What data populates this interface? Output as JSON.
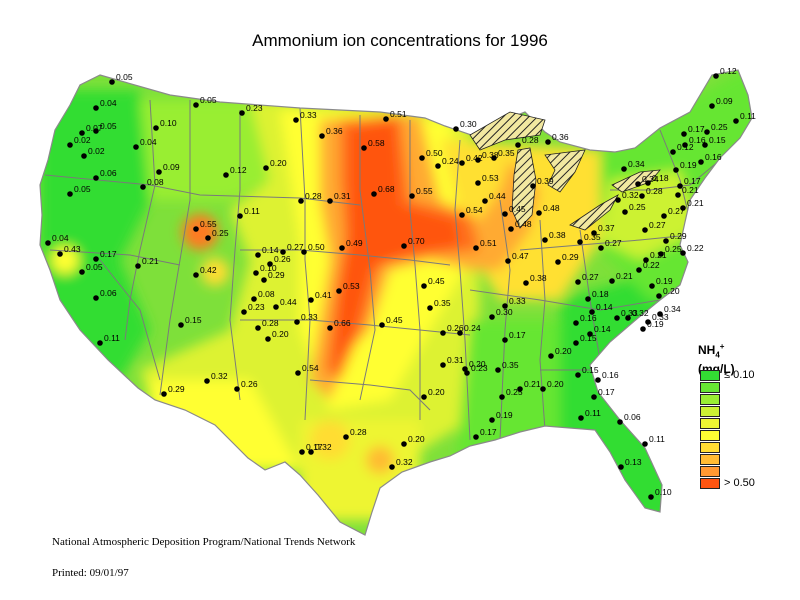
{
  "title": "Ammonium ion concentrations for 1996",
  "legend": {
    "species": "NH",
    "sub": "4",
    "sup": "+",
    "unit": "(mg/L)",
    "low_label": "≤ 0.10",
    "high_label": "> 0.50",
    "colors": [
      "#33dd33",
      "#66e633",
      "#99ee33",
      "#ccf233",
      "#eef533",
      "#ffff33",
      "#ffdd33",
      "#ffbb33",
      "#ff9933",
      "#ff5511"
    ]
  },
  "footer": {
    "program": "National Atmospheric Deposition Program/National Trends Network",
    "printed": "Printed: 09/01/97"
  },
  "sites": [
    {
      "v": "0.05"
    },
    {
      "v": "0.04"
    },
    {
      "v": "0.07"
    },
    {
      "v": "0.05"
    },
    {
      "v": "0.02"
    },
    {
      "v": "0.02"
    },
    {
      "v": "0.04"
    },
    {
      "v": "0.10"
    },
    {
      "v": "0.06"
    },
    {
      "v": "0.05"
    },
    {
      "v": "0.08"
    },
    {
      "v": "0.09"
    },
    {
      "v": "0.05"
    },
    {
      "v": "0.23"
    },
    {
      "v": "0.33"
    },
    {
      "v": "0.51"
    },
    {
      "v": "0.36"
    },
    {
      "v": "0.58"
    },
    {
      "v": "0.30"
    },
    {
      "v": "0.24"
    },
    {
      "v": "0.50"
    },
    {
      "v": "0.28"
    },
    {
      "v": "0.38"
    },
    {
      "v": "0.35"
    },
    {
      "v": "0.42"
    },
    {
      "v": "0.36"
    },
    {
      "v": "0.53"
    },
    {
      "v": "0.39"
    },
    {
      "v": "0.44"
    },
    {
      "v": "0.20"
    },
    {
      "v": "0.12"
    },
    {
      "v": "0.28"
    },
    {
      "v": "0.31"
    },
    {
      "v": "0.68"
    },
    {
      "v": "0.55"
    },
    {
      "v": "0.54"
    },
    {
      "v": "0.45"
    },
    {
      "v": "0.48"
    },
    {
      "v": "0.48"
    },
    {
      "v": "0.38"
    },
    {
      "v": "0.35"
    },
    {
      "v": "0.55"
    },
    {
      "v": "0.25"
    },
    {
      "v": "0.11"
    },
    {
      "v": "0.04"
    },
    {
      "v": "0.43"
    },
    {
      "v": "0.17"
    },
    {
      "v": "0.05"
    },
    {
      "v": "0.21"
    },
    {
      "v": "0.42"
    },
    {
      "v": "0.14"
    },
    {
      "v": "0.27"
    },
    {
      "v": "0.50"
    },
    {
      "v": "0.26"
    },
    {
      "v": "0.10"
    },
    {
      "v": "0.49"
    },
    {
      "v": "0.70"
    },
    {
      "v": "0.51"
    },
    {
      "v": "0.47"
    },
    {
      "v": "0.29"
    },
    {
      "v": "0.27"
    },
    {
      "v": "0.37"
    },
    {
      "v": "0.06"
    },
    {
      "v": "0.29"
    },
    {
      "v": "0.08"
    },
    {
      "v": "0.44"
    },
    {
      "v": "0.41"
    },
    {
      "v": "0.53"
    },
    {
      "v": "0.45"
    },
    {
      "v": "0.38"
    },
    {
      "v": "0.23"
    },
    {
      "v": "0.15"
    },
    {
      "v": "0.28"
    },
    {
      "v": "0.33"
    },
    {
      "v": "0.20"
    },
    {
      "v": "0.35"
    },
    {
      "v": "0.11"
    },
    {
      "v": "0.66"
    },
    {
      "v": "0.45"
    },
    {
      "v": "0.26"
    },
    {
      "v": "0.24"
    },
    {
      "v": "0.30"
    },
    {
      "v": "0.33"
    },
    {
      "v": "0.27"
    },
    {
      "v": "0.18"
    },
    {
      "v": "0.14"
    },
    {
      "v": "0.16"
    },
    {
      "v": "0.14"
    },
    {
      "v": "0.17"
    },
    {
      "v": "0.33"
    },
    {
      "v": "0.15"
    },
    {
      "v": "0.20"
    },
    {
      "v": "0.26"
    },
    {
      "v": "0.54"
    },
    {
      "v": "0.31"
    },
    {
      "v": "0.23"
    },
    {
      "v": "0.35"
    },
    {
      "v": "0.20"
    },
    {
      "v": "0.29"
    },
    {
      "v": "0.32"
    },
    {
      "v": "0.20"
    },
    {
      "v": "0.25"
    },
    {
      "v": "0.21"
    },
    {
      "v": "0.20"
    },
    {
      "v": "0.17"
    },
    {
      "v": "0.15"
    },
    {
      "v": "0.16"
    },
    {
      "v": "0.17"
    },
    {
      "v": "0.19"
    },
    {
      "v": "0.28"
    },
    {
      "v": "0.20"
    },
    {
      "v": "0.17"
    },
    {
      "v": "0.11"
    },
    {
      "v": "0.06"
    },
    {
      "v": "0.11"
    },
    {
      "v": "0.13"
    },
    {
      "v": "0.10"
    },
    {
      "v": "0.32"
    },
    {
      "v": "0.32"
    },
    {
      "v": "0.12"
    },
    {
      "v": "0.09"
    },
    {
      "v": "0.11"
    },
    {
      "v": "0.17"
    },
    {
      "v": "0.25"
    },
    {
      "v": "0.16"
    },
    {
      "v": "0.15"
    },
    {
      "v": "0.16"
    },
    {
      "v": "0.12"
    },
    {
      "v": "0.19"
    },
    {
      "v": "0.17"
    },
    {
      "v": "0.34"
    },
    {
      "v": "0.18"
    },
    {
      "v": "0.21"
    },
    {
      "v": "0.34"
    },
    {
      "v": "0.28"
    },
    {
      "v": "0.32"
    },
    {
      "v": "0.21"
    },
    {
      "v": "0.27"
    },
    {
      "v": "0.25"
    },
    {
      "v": "0.27"
    },
    {
      "v": "0.29"
    },
    {
      "v": "0.25"
    },
    {
      "v": "0.22"
    },
    {
      "v": "0.21"
    },
    {
      "v": "0.21"
    },
    {
      "v": "0.22"
    },
    {
      "v": "0.19"
    },
    {
      "v": "0.20"
    },
    {
      "v": "0.34"
    },
    {
      "v": "0.32"
    },
    {
      "v": "0.19"
    },
    {
      "v": "0.33"
    }
  ]
}
